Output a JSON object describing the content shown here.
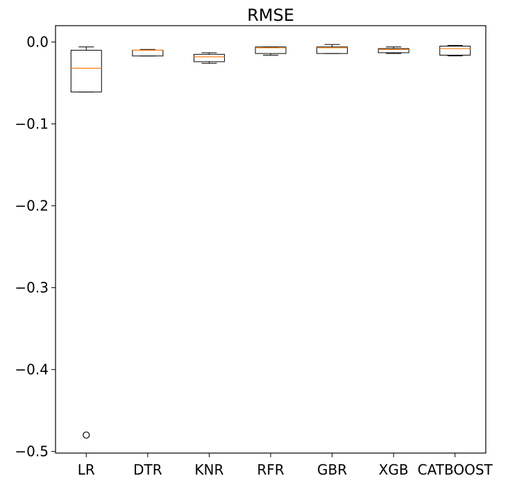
{
  "chart_data": {
    "type": "box",
    "title": "RMSE",
    "xlabel": "",
    "ylabel": "",
    "ylim": [
      -0.502,
      0.02
    ],
    "y_ticks": [
      0.0,
      -0.1,
      -0.2,
      -0.3,
      -0.4,
      -0.5
    ],
    "y_tick_labels": [
      "0.0",
      "−0.1",
      "−0.2",
      "−0.3",
      "−0.4",
      "−0.5"
    ],
    "categories": [
      "LR",
      "DTR",
      "KNR",
      "RFR",
      "GBR",
      "XGB",
      "CATBOOST"
    ],
    "boxes": [
      {
        "category": "LR",
        "whisker_low": -0.061,
        "q1": -0.061,
        "median": -0.032,
        "q3": -0.01,
        "whisker_high": -0.006,
        "outliers": [
          -0.48
        ]
      },
      {
        "category": "DTR",
        "whisker_low": -0.017,
        "q1": -0.017,
        "median": -0.01,
        "q3": -0.01,
        "whisker_high": -0.009,
        "outliers": []
      },
      {
        "category": "KNR",
        "whisker_low": -0.026,
        "q1": -0.024,
        "median": -0.018,
        "q3": -0.015,
        "whisker_high": -0.013,
        "outliers": []
      },
      {
        "category": "RFR",
        "whisker_low": -0.016,
        "q1": -0.014,
        "median": -0.007,
        "q3": -0.006,
        "whisker_high": -0.006,
        "outliers": []
      },
      {
        "category": "GBR",
        "whisker_low": -0.014,
        "q1": -0.014,
        "median": -0.007,
        "q3": -0.006,
        "whisker_high": -0.003,
        "outliers": []
      },
      {
        "category": "XGB",
        "whisker_low": -0.014,
        "q1": -0.013,
        "median": -0.009,
        "q3": -0.008,
        "whisker_high": -0.006,
        "outliers": []
      },
      {
        "category": "CATBOOST",
        "whisker_low": -0.017,
        "q1": -0.016,
        "median": -0.008,
        "q3": -0.005,
        "whisker_high": -0.004,
        "outliers": []
      }
    ],
    "colors": {
      "box": "#000000",
      "median": "#ff7f0e",
      "background": "#ffffff"
    },
    "grid": false,
    "legend": "none"
  }
}
